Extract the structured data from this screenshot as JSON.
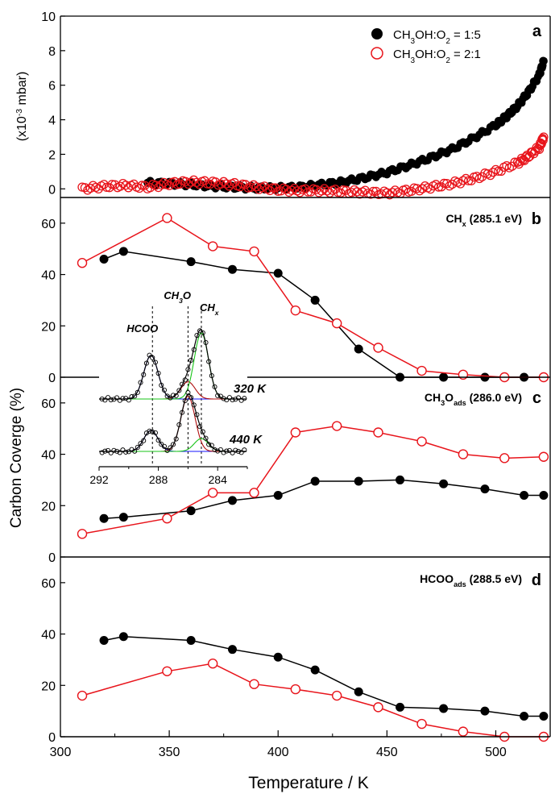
{
  "figure": {
    "x_axis_label": "Temperature / K",
    "y_axis_label": "Carbon Coverge (%)",
    "x_ticks": [
      "300",
      "350",
      "400",
      "450",
      "500"
    ],
    "colors": {
      "black": "#000000",
      "red": "#e8141b",
      "blue": "#1515ff",
      "green": "#19c419",
      "darkred": "#b01010"
    }
  },
  "chart_data": [
    {
      "panel": "a",
      "type": "scatter",
      "title": "",
      "xlabel": "Temperature / K",
      "ylabel": "(x10-3 mbar)",
      "ylabel_parts": [
        "(x10",
        "-3",
        " mbar)"
      ],
      "xlim": [
        300,
        525
      ],
      "ylim": [
        -0.5,
        10
      ],
      "y_ticks": [
        0,
        2,
        4,
        6,
        8,
        10
      ],
      "legend_position": "top-right",
      "series": [
        {
          "name": "CH3OH:O2 = 1:5",
          "label_parts": [
            [
              "CH",
              "n"
            ],
            [
              "3",
              "sub"
            ],
            [
              "OH:O",
              "n"
            ],
            [
              "2",
              "sub"
            ],
            [
              " = 1:5",
              "n"
            ]
          ],
          "marker": "filled-circle",
          "x": [
            340,
            350,
            360,
            370,
            380,
            390,
            400,
            410,
            420,
            430,
            440,
            450,
            460,
            470,
            480,
            490,
            500,
            505,
            510,
            515,
            520,
            522
          ],
          "y": [
            0.35,
            0.3,
            0.25,
            0.15,
            0.1,
            0.05,
            0.05,
            0.1,
            0.25,
            0.4,
            0.65,
            0.95,
            1.35,
            1.8,
            2.3,
            2.95,
            3.7,
            4.2,
            4.8,
            5.6,
            6.6,
            7.4
          ]
        },
        {
          "name": "CH3OH:O2 = 2:1",
          "label_parts": [
            [
              "CH",
              "n"
            ],
            [
              "3",
              "sub"
            ],
            [
              "OH:O",
              "n"
            ],
            [
              "2",
              "sub"
            ],
            [
              " = 2:1",
              "n"
            ]
          ],
          "marker": "open-circle",
          "x": [
            310,
            320,
            330,
            340,
            350,
            360,
            370,
            380,
            390,
            400,
            410,
            420,
            430,
            440,
            450,
            460,
            470,
            480,
            490,
            500,
            510,
            515,
            520,
            522
          ],
          "y": [
            0.0,
            0.15,
            0.2,
            0.1,
            0.3,
            0.4,
            0.35,
            0.25,
            0.1,
            -0.05,
            -0.1,
            -0.1,
            -0.15,
            -0.2,
            -0.25,
            -0.1,
            0.1,
            0.3,
            0.6,
            1.0,
            1.5,
            1.9,
            2.4,
            3.0
          ]
        }
      ]
    },
    {
      "panel": "b",
      "type": "line",
      "annotation_parts": [
        [
          "CH",
          "n"
        ],
        [
          "x",
          "sub"
        ],
        [
          " (285.1 eV)",
          "n"
        ]
      ],
      "xlim": [
        300,
        525
      ],
      "ylim": [
        0,
        70
      ],
      "y_ticks": [
        0,
        20,
        40,
        60
      ],
      "series": [
        {
          "name": "CH3OH:O2 = 1:5",
          "x": [
            320,
            329,
            360,
            379,
            400,
            417,
            437,
            456,
            476,
            495,
            513,
            522
          ],
          "y": [
            46,
            49,
            45,
            42,
            40.5,
            30,
            11,
            0,
            0,
            0,
            0,
            0
          ]
        },
        {
          "name": "CH3OH:O2 = 2:1",
          "x": [
            310,
            349,
            370,
            389,
            408,
            427,
            446,
            466,
            485,
            504,
            522
          ],
          "y": [
            44.5,
            62,
            51,
            49,
            26,
            21,
            11.5,
            2.5,
            1,
            0,
            0
          ]
        }
      ]
    },
    {
      "panel": "c",
      "type": "line",
      "annotation_parts": [
        [
          "CH",
          "n"
        ],
        [
          "3",
          "sub"
        ],
        [
          "O",
          "n"
        ],
        [
          "ads",
          "sub"
        ],
        [
          " (286.0 eV)",
          "n"
        ]
      ],
      "xlim": [
        300,
        525
      ],
      "ylim": [
        0,
        70
      ],
      "y_ticks": [
        0,
        20,
        40,
        60
      ],
      "series": [
        {
          "name": "CH3OH:O2 = 1:5",
          "x": [
            320,
            329,
            360,
            379,
            400,
            417,
            437,
            456,
            476,
            495,
            513,
            522
          ],
          "y": [
            15,
            15.5,
            18,
            22,
            24,
            29.5,
            29.5,
            30,
            28.5,
            26.5,
            24,
            24
          ]
        },
        {
          "name": "CH3OH:O2 = 2:1",
          "x": [
            310,
            349,
            370,
            389,
            408,
            427,
            446,
            466,
            485,
            504,
            522
          ],
          "y": [
            9,
            15,
            25,
            25,
            48.5,
            51,
            48.5,
            45,
            40,
            38.5,
            39
          ]
        }
      ]
    },
    {
      "panel": "d",
      "type": "line",
      "annotation_parts": [
        [
          "HCOO",
          "n"
        ],
        [
          "ads",
          "sub"
        ],
        [
          " (288.5 eV)",
          "n"
        ]
      ],
      "xlim": [
        300,
        525
      ],
      "ylim": [
        0,
        70
      ],
      "y_ticks": [
        0,
        20,
        40,
        60
      ],
      "series": [
        {
          "name": "CH3OH:O2 = 1:5",
          "x": [
            320,
            329,
            360,
            379,
            400,
            417,
            437,
            456,
            476,
            495,
            513,
            522
          ],
          "y": [
            37.5,
            39,
            37.5,
            34,
            31,
            26,
            17.5,
            11.5,
            11,
            10,
            8,
            8
          ]
        },
        {
          "name": "CH3OH:O2 = 2:1",
          "x": [
            310,
            349,
            370,
            389,
            408,
            427,
            446,
            466,
            485,
            504,
            522
          ],
          "y": [
            16,
            25.5,
            28.5,
            20.5,
            18.5,
            16,
            11.5,
            5,
            2,
            0,
            0
          ]
        }
      ]
    },
    {
      "panel": "inset",
      "type": "line",
      "xlabel": "",
      "x_reversed": true,
      "xlim": [
        292,
        282
      ],
      "x_ticks": [
        292,
        288,
        284
      ],
      "peak_labels": [
        {
          "parts": [
            [
              "HCOO",
              "n"
            ]
          ],
          "x": 288.4
        },
        {
          "parts": [
            [
              "CH",
              "n"
            ],
            [
              "3",
              "sub"
            ],
            [
              "O",
              "n"
            ]
          ],
          "x": 286.0
        },
        {
          "parts": [
            [
              "CH",
              "n"
            ],
            [
              "x",
              "sub"
            ]
          ],
          "x": 285.1
        }
      ],
      "spectra": [
        {
          "label": "320 K",
          "peaks": [
            {
              "center": 288.5,
              "height": 0.66,
              "color": "blue"
            },
            {
              "center": 286.0,
              "height": 0.26,
              "color": "darkred"
            },
            {
              "center": 285.1,
              "height": 1.0,
              "color": "green"
            }
          ]
        },
        {
          "label": "440 K",
          "peaks": [
            {
              "center": 288.5,
              "height": 0.36,
              "color": "blue"
            },
            {
              "center": 286.0,
              "height": 0.95,
              "color": "darkred"
            },
            {
              "center": 285.1,
              "height": 0.22,
              "color": "green"
            }
          ]
        }
      ]
    }
  ]
}
